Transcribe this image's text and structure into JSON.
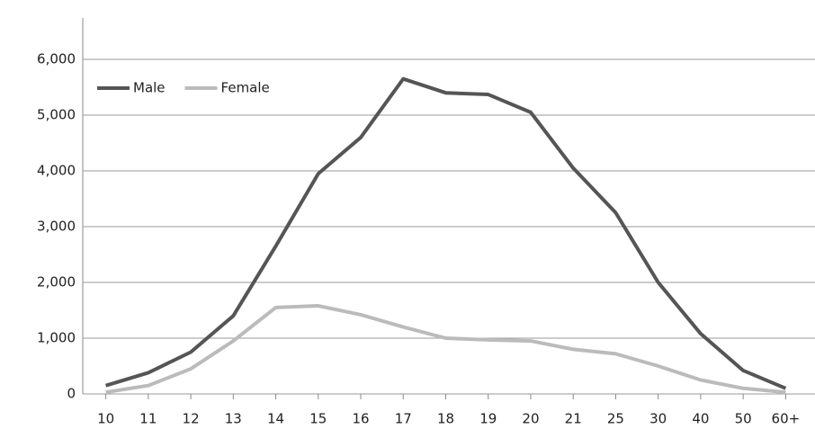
{
  "chart_data": {
    "type": "line",
    "categories": [
      "10",
      "11",
      "12",
      "13",
      "14",
      "15",
      "16",
      "17",
      "18",
      "19",
      "20",
      "21",
      "25",
      "30",
      "40",
      "50",
      "60+"
    ],
    "series": [
      {
        "name": "Male",
        "color": "#555555",
        "values": [
          150,
          380,
          750,
          1400,
          2650,
          3950,
          4600,
          5650,
          5400,
          5370,
          5050,
          4050,
          3250,
          2000,
          1080,
          420,
          100
        ]
      },
      {
        "name": "Female",
        "color": "#bbbbbb",
        "values": [
          30,
          150,
          450,
          950,
          1550,
          1580,
          1420,
          1200,
          1000,
          970,
          950,
          800,
          720,
          500,
          250,
          100,
          30
        ]
      }
    ],
    "ylim": [
      0,
      6000
    ],
    "yticks": [
      0,
      {
        "value": 1000,
        "label": "1,000"
      },
      {
        "value": 2000,
        "label": "2,000"
      },
      {
        "value": 3000,
        "label": "3,000"
      },
      {
        "value": 4000,
        "label": "4,000"
      },
      {
        "value": 5000,
        "label": "5,000"
      },
      {
        "value": 6000,
        "label": "6,000"
      }
    ],
    "grid": true,
    "legend": "top-left"
  }
}
